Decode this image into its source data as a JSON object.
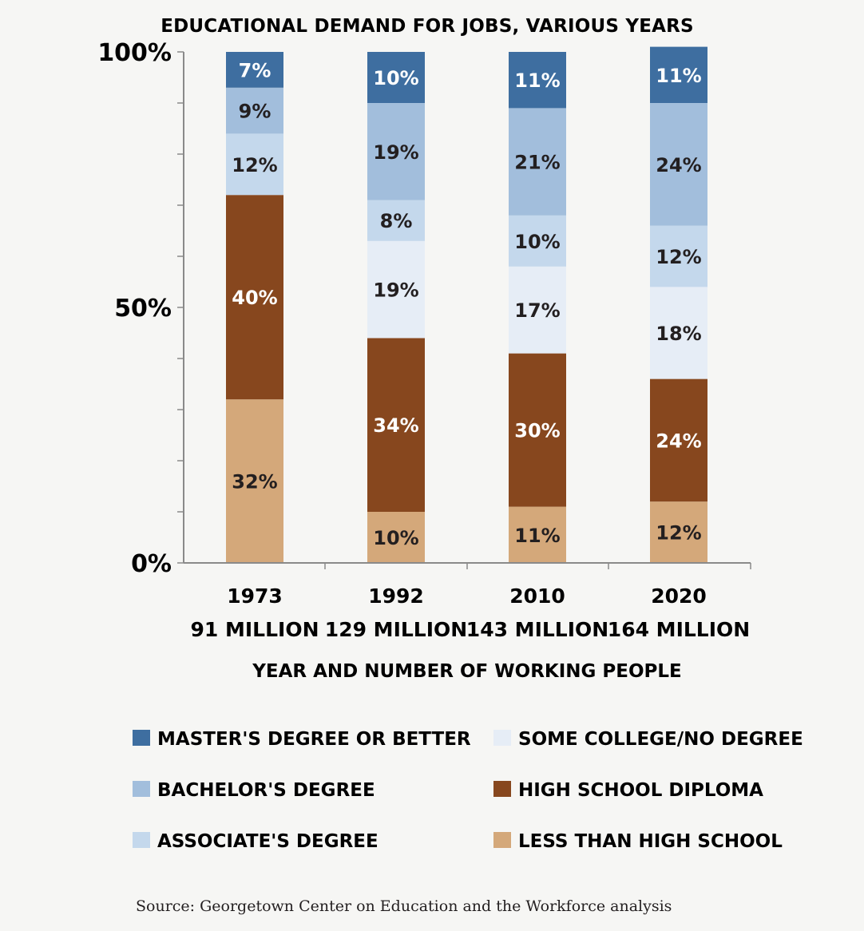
{
  "chart_data": {
    "type": "bar",
    "stacked": true,
    "title": "EDUCATIONAL DEMAND FOR JOBS, VARIOUS YEARS",
    "xlabel": "YEAR AND NUMBER OF WORKING PEOPLE",
    "ylabel": "",
    "ylim": [
      0,
      100
    ],
    "yticks": [
      "0%",
      "50%",
      "100%"
    ],
    "categories": [
      {
        "year": "1973",
        "workers": "91 MILLION"
      },
      {
        "year": "1992",
        "workers": "129 MILLION"
      },
      {
        "year": "2010",
        "workers": "143 MILLION"
      },
      {
        "year": "2020",
        "workers": "164 MILLION"
      }
    ],
    "series": [
      {
        "name": "LESS THAN HIGH SCHOOL",
        "color": "#d4a87a",
        "label_color": "#231f20",
        "values": [
          32,
          10,
          11,
          12
        ]
      },
      {
        "name": "HIGH SCHOOL DIPLOMA",
        "color": "#87471e",
        "label_color": "#ffffff",
        "values": [
          40,
          34,
          30,
          24
        ]
      },
      {
        "name": "SOME COLLEGE/NO DEGREE",
        "color": "#e6edf6",
        "label_color": "#231f20",
        "values": [
          0,
          19,
          17,
          18
        ]
      },
      {
        "name": "ASSOCIATE'S DEGREE",
        "color": "#c4d8ec",
        "label_color": "#231f20",
        "values": [
          12,
          8,
          10,
          12
        ]
      },
      {
        "name": "BACHELOR'S DEGREE",
        "color": "#a2bedc",
        "label_color": "#231f20",
        "values": [
          9,
          19,
          21,
          24
        ]
      },
      {
        "name": "MASTER'S DEGREE OR BETTER",
        "color": "#3e6ea0",
        "label_color": "#ffffff",
        "values": [
          7,
          10,
          11,
          11
        ]
      }
    ],
    "legend": {
      "placement": "bottom",
      "columns": [
        [
          "MASTER'S DEGREE OR BETTER",
          "BACHELOR'S DEGREE",
          "ASSOCIATE'S DEGREE"
        ],
        [
          "SOME COLLEGE/NO DEGREE",
          "HIGH SCHOOL DIPLOMA",
          "LESS THAN HIGH SCHOOL"
        ]
      ]
    },
    "grid": false
  },
  "source": "Source: Georgetown Center on Education and the Workforce analysis"
}
